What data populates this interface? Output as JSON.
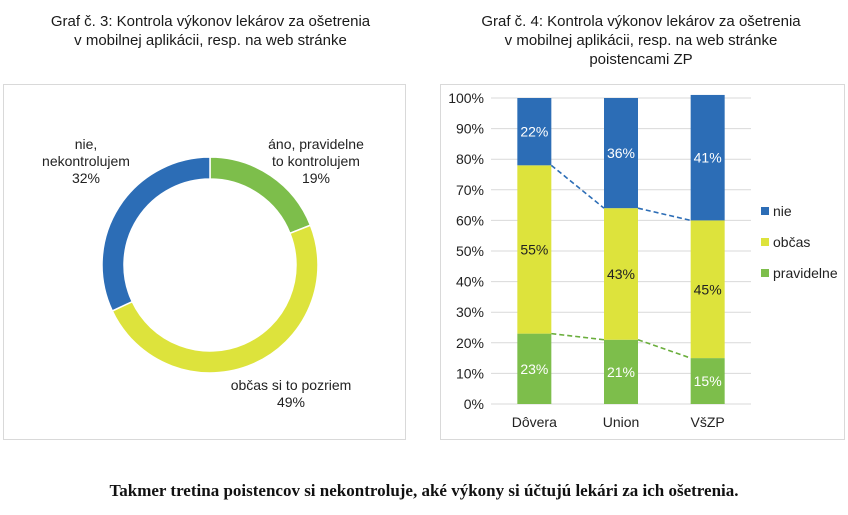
{
  "chart_data": [
    {
      "type": "pie",
      "variant": "donut",
      "title_lines": [
        "Graf č. 3: Kontrola výkonov lekárov za ošetrenia",
        "v mobilnej aplikácii, resp. na web stránke"
      ],
      "slices": [
        {
          "label_lines": [
            "áno, pravidelne",
            "to kontrolujem"
          ],
          "value": 19,
          "value_label": "19%",
          "color": "#7DBE4B"
        },
        {
          "label_lines": [
            "občas si to pozriem"
          ],
          "value": 49,
          "value_label": "49%",
          "color": "#DDE33C"
        },
        {
          "label_lines": [
            "nie,",
            "nekontrolujem"
          ],
          "value": 32,
          "value_label": "32%",
          "color": "#2C6DB6"
        }
      ]
    },
    {
      "type": "bar",
      "stacked": true,
      "percent": true,
      "title_lines": [
        "Graf č. 4: Kontrola výkonov lekárov za ošetrenia",
        "v mobilnej aplikácii, resp. na web stránke",
        "poistencami ZP"
      ],
      "categories": [
        "Dôvera",
        "Union",
        "VšZP"
      ],
      "series": [
        {
          "name": "pravidelne",
          "values": [
            23,
            21,
            15
          ],
          "value_labels": [
            "23%",
            "21%",
            "15%"
          ],
          "color": "#7DBE4B",
          "label_color": "#ffffff"
        },
        {
          "name": "občas",
          "values": [
            55,
            43,
            45
          ],
          "value_labels": [
            "55%",
            "43%",
            "45%"
          ],
          "color": "#DDE33C",
          "label_color": "#222222"
        },
        {
          "name": "nie",
          "values": [
            22,
            36,
            41
          ],
          "value_labels": [
            "22%",
            "36%",
            "41%"
          ],
          "color": "#2C6DB6",
          "label_color": "#ffffff"
        }
      ],
      "ylim": [
        0,
        100
      ],
      "y_ticks": [
        "0%",
        "10%",
        "20%",
        "30%",
        "40%",
        "50%",
        "60%",
        "70%",
        "80%",
        "90%",
        "100%"
      ],
      "legend_order": [
        "nie",
        "občas",
        "pravidelne"
      ],
      "legend_position": "right",
      "series_lines": "dashed"
    }
  ],
  "caption": "Takmer tretina poistencov si nekontroluje, aké výkony si účtujú lekári za ich ošetrenia."
}
